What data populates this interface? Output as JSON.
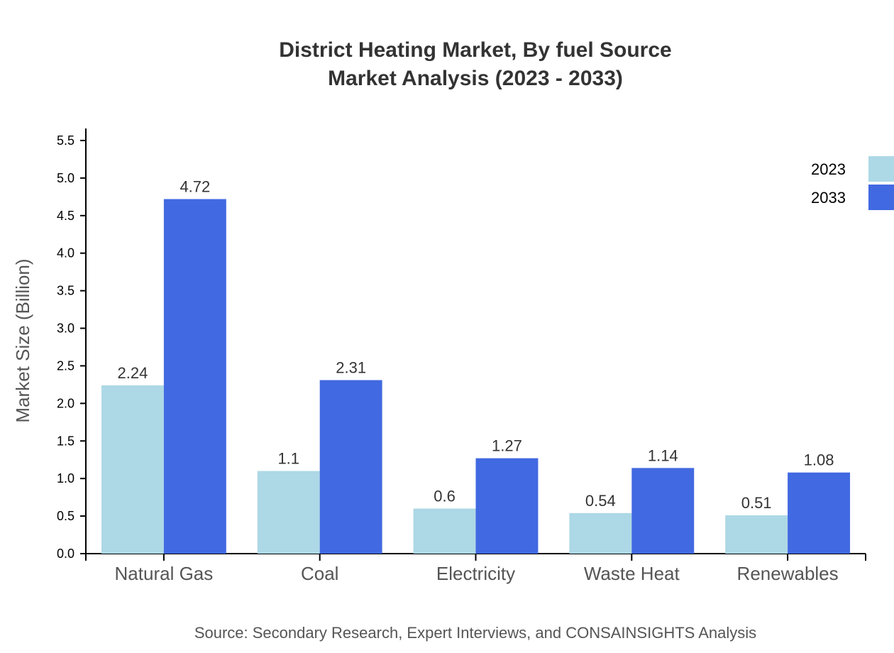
{
  "chart_data": {
    "type": "bar",
    "title": "District Heating Market, By fuel Source",
    "subtitle": "Market Analysis (2023 - 2033)",
    "xlabel": "",
    "ylabel": "Market Size (Billion)",
    "categories": [
      "Natural Gas",
      "Coal",
      "Electricity",
      "Waste Heat",
      "Renewables"
    ],
    "series": [
      {
        "name": "2023",
        "color": "#ADD8E6",
        "values": [
          2.24,
          1.1,
          0.6,
          0.54,
          0.51
        ]
      },
      {
        "name": "2033",
        "color": "#4169E1",
        "values": [
          4.72,
          2.31,
          1.27,
          1.14,
          1.08
        ]
      }
    ],
    "ylim": [
      0,
      5.66
    ],
    "yticks": [
      "0.0",
      "0.5",
      "1.0",
      "1.5",
      "2.0",
      "2.5",
      "3.0",
      "3.5",
      "4.0",
      "4.5",
      "5.0",
      "5.5"
    ],
    "grid": false,
    "legend_position": "top-right",
    "source": "Source: Secondary Research, Expert Interviews, and CONSAINSIGHTS Analysis"
  }
}
